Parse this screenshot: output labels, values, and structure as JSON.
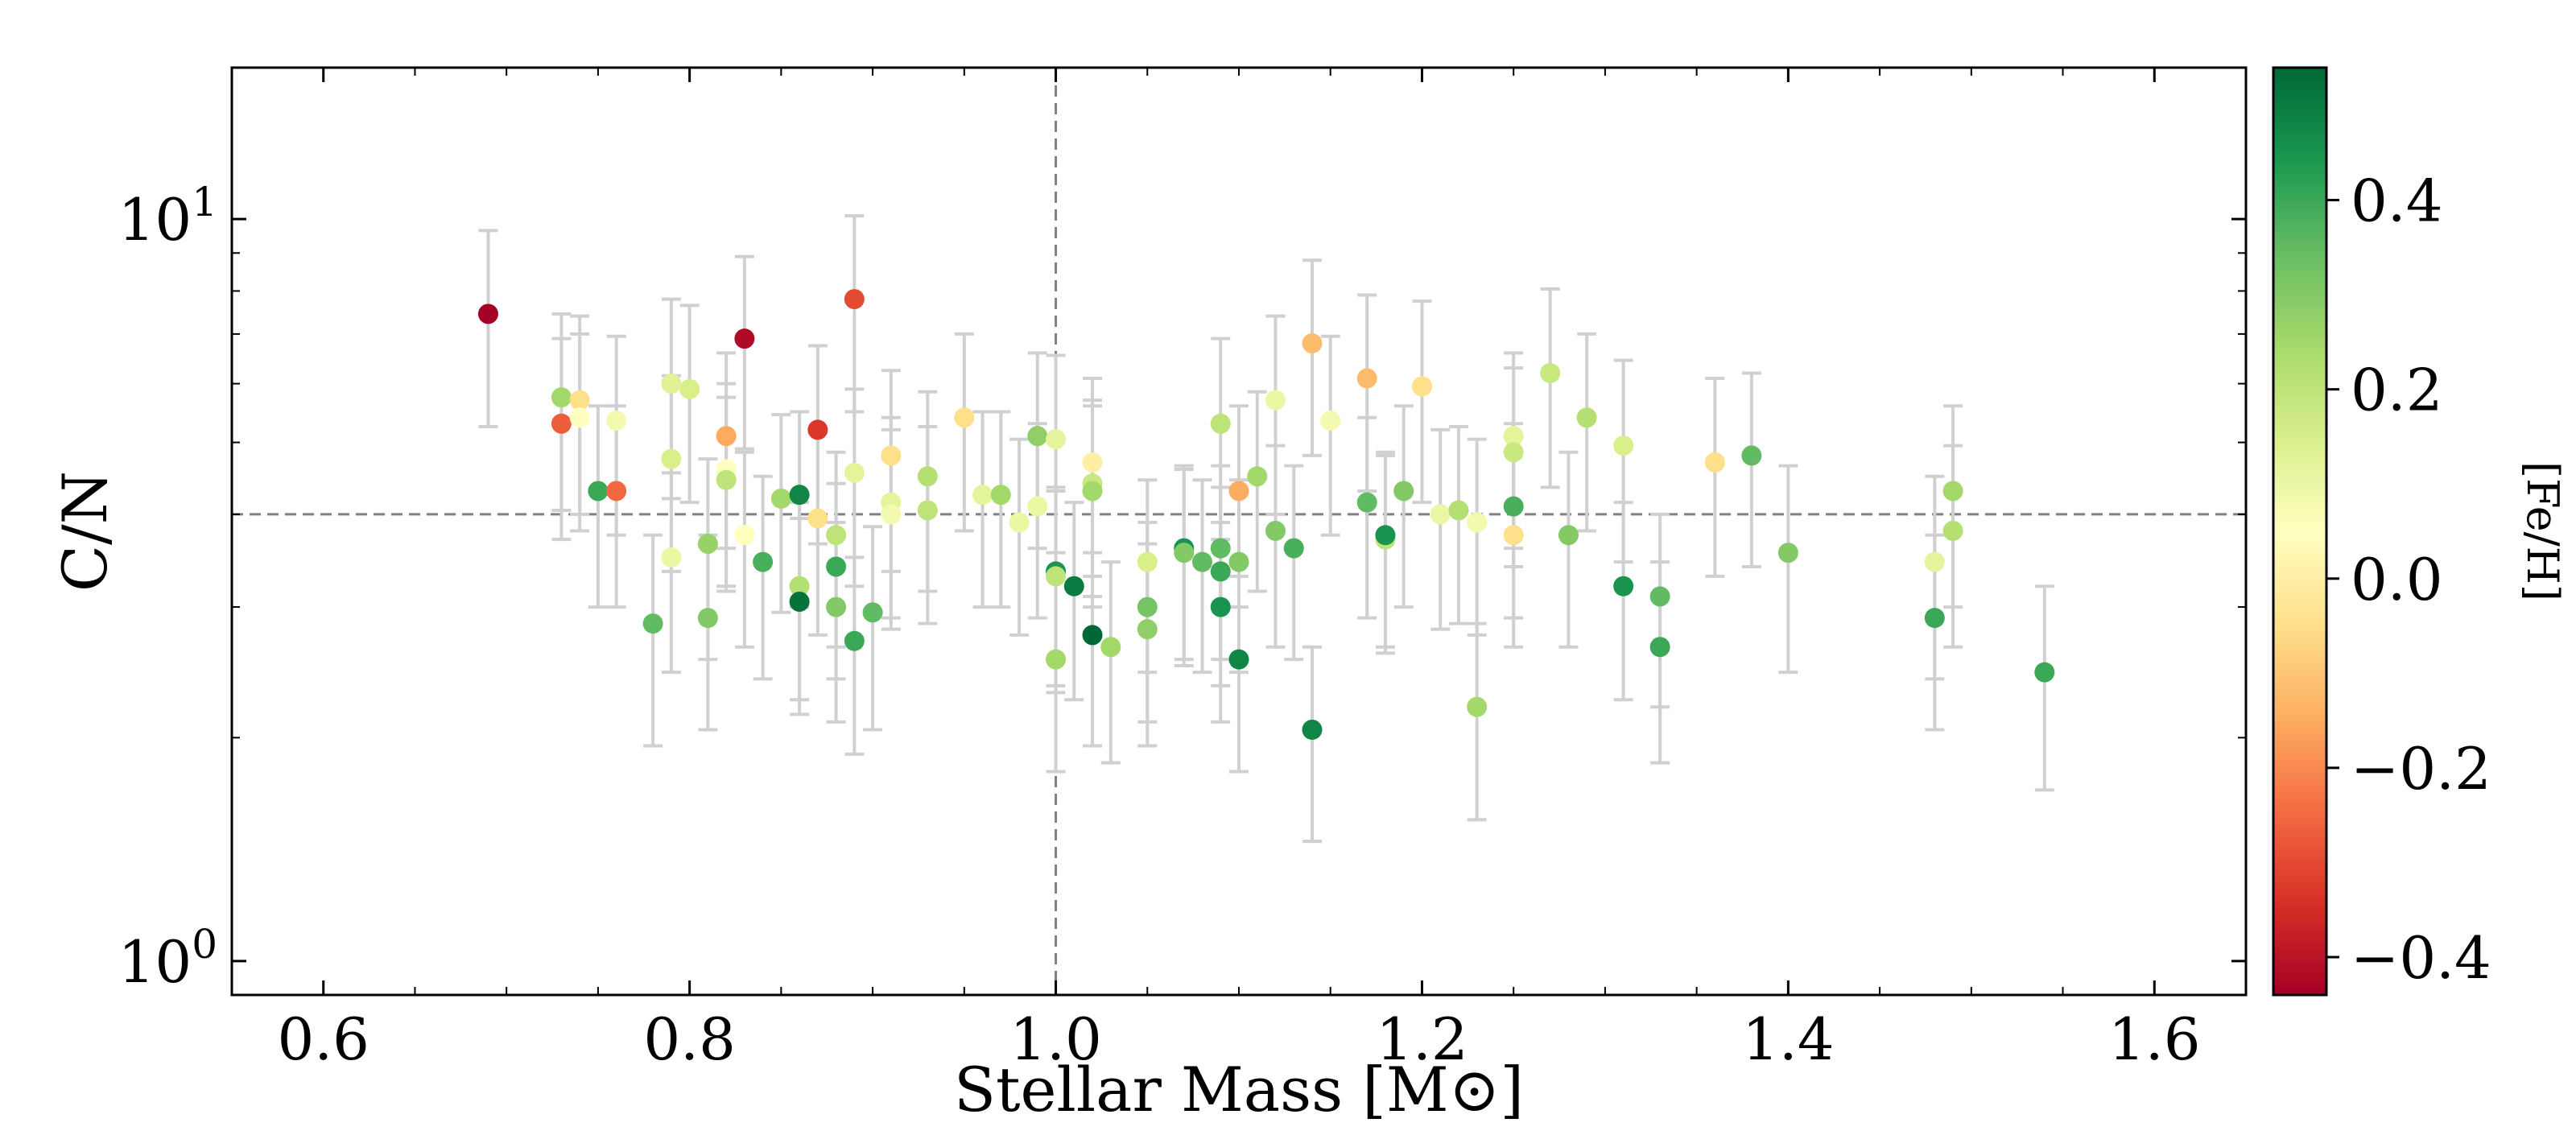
{
  "chart_data": {
    "type": "scatter",
    "title": "",
    "xlabel": "Stellar Mass [M⊙]",
    "ylabel": "C/N",
    "xlim": [
      0.55,
      1.65
    ],
    "ylim": [
      0.9,
      16.0
    ],
    "yscale": "log",
    "x_ticks": [
      0.6,
      0.8,
      1.0,
      1.2,
      1.4,
      1.6
    ],
    "x_tick_labels": [
      "0.6",
      "0.8",
      "1.0",
      "1.2",
      "1.4",
      "1.6"
    ],
    "y_ticks": [
      1,
      10
    ],
    "y_tick_labels": [
      {
        "base": "10",
        "exp": "0"
      },
      {
        "base": "10",
        "exp": "1"
      }
    ],
    "reference_lines": {
      "x": 1.0,
      "y": 4.0,
      "style": "dashed",
      "color": "#808080"
    },
    "colorbar": {
      "label": "[Fe/H]",
      "range": [
        -0.44,
        0.54
      ],
      "ticks": [
        -0.4,
        -0.2,
        0.0,
        0.2,
        0.4
      ],
      "tick_labels": [
        "−0.4",
        "−0.2",
        "0.0",
        "0.2",
        "0.4"
      ],
      "colormap": "RdYlGn",
      "stops": [
        "#a50026",
        "#d73027",
        "#f46d43",
        "#fdae61",
        "#fee08b",
        "#ffffbf",
        "#d9ef8b",
        "#a6d96a",
        "#66bd63",
        "#1a9850",
        "#006837"
      ]
    },
    "errorbar_color": "#d0d0d0",
    "points": [
      {
        "x": 0.69,
        "y": 7.45,
        "err": 2.2,
        "feh": -0.44
      },
      {
        "x": 0.73,
        "y": 5.75,
        "err": 1.7,
        "feh": 0.25
      },
      {
        "x": 0.73,
        "y": 5.3,
        "err": 1.6,
        "feh": -0.27
      },
      {
        "x": 0.74,
        "y": 5.7,
        "err": 1.7,
        "feh": -0.05
      },
      {
        "x": 0.74,
        "y": 5.4,
        "err": 1.6,
        "feh": 0.05
      },
      {
        "x": 0.75,
        "y": 4.3,
        "err": 1.3,
        "feh": 0.4
      },
      {
        "x": 0.76,
        "y": 5.35,
        "err": 1.6,
        "feh": 0.08
      },
      {
        "x": 0.76,
        "y": 4.3,
        "err": 1.3,
        "feh": -0.25
      },
      {
        "x": 0.78,
        "y": 2.85,
        "err": 0.9,
        "feh": 0.35
      },
      {
        "x": 0.79,
        "y": 6.0,
        "err": 1.8,
        "feh": 0.13
      },
      {
        "x": 0.79,
        "y": 4.75,
        "err": 1.4,
        "feh": 0.15
      },
      {
        "x": 0.79,
        "y": 3.5,
        "err": 1.05,
        "feh": 0.1
      },
      {
        "x": 0.8,
        "y": 5.9,
        "err": 1.75,
        "feh": 0.15
      },
      {
        "x": 0.81,
        "y": 3.65,
        "err": 1.1,
        "feh": 0.27
      },
      {
        "x": 0.81,
        "y": 2.9,
        "err": 0.85,
        "feh": 0.3
      },
      {
        "x": 0.82,
        "y": 5.1,
        "err": 1.5,
        "feh": -0.15
      },
      {
        "x": 0.82,
        "y": 4.6,
        "err": 1.4,
        "feh": 0.05
      },
      {
        "x": 0.82,
        "y": 4.45,
        "err": 1.3,
        "feh": 0.2
      },
      {
        "x": 0.83,
        "y": 6.9,
        "err": 2.0,
        "feh": -0.42
      },
      {
        "x": 0.83,
        "y": 3.75,
        "err": 1.1,
        "feh": 0.05
      },
      {
        "x": 0.84,
        "y": 3.45,
        "err": 1.05,
        "feh": 0.38
      },
      {
        "x": 0.85,
        "y": 4.2,
        "err": 1.25,
        "feh": 0.25
      },
      {
        "x": 0.86,
        "y": 4.25,
        "err": 1.25,
        "feh": 0.48
      },
      {
        "x": 0.86,
        "y": 3.2,
        "err": 0.95,
        "feh": 0.22
      },
      {
        "x": 0.86,
        "y": 3.05,
        "err": 0.9,
        "feh": 0.52
      },
      {
        "x": 0.87,
        "y": 5.2,
        "err": 1.55,
        "feh": -0.33
      },
      {
        "x": 0.87,
        "y": 3.95,
        "err": 1.2,
        "feh": -0.05
      },
      {
        "x": 0.88,
        "y": 3.75,
        "err": 1.1,
        "feh": 0.2
      },
      {
        "x": 0.88,
        "y": 3.4,
        "err": 1.0,
        "feh": 0.4
      },
      {
        "x": 0.88,
        "y": 3.0,
        "err": 0.9,
        "feh": 0.3
      },
      {
        "x": 0.89,
        "y": 7.8,
        "err": 2.3,
        "feh": -0.3
      },
      {
        "x": 0.89,
        "y": 4.55,
        "err": 1.35,
        "feh": 0.12
      },
      {
        "x": 0.89,
        "y": 2.7,
        "err": 0.8,
        "feh": 0.4
      },
      {
        "x": 0.9,
        "y": 2.95,
        "err": 0.9,
        "feh": 0.35
      },
      {
        "x": 0.91,
        "y": 4.8,
        "err": 1.45,
        "feh": -0.05
      },
      {
        "x": 0.91,
        "y": 4.15,
        "err": 1.25,
        "feh": 0.12
      },
      {
        "x": 0.91,
        "y": 4.0,
        "err": 1.2,
        "feh": 0.08
      },
      {
        "x": 0.93,
        "y": 4.5,
        "err": 1.35,
        "feh": 0.22
      },
      {
        "x": 0.93,
        "y": 4.05,
        "err": 1.2,
        "feh": 0.2
      },
      {
        "x": 0.95,
        "y": 5.4,
        "err": 1.6,
        "feh": -0.05
      },
      {
        "x": 0.96,
        "y": 4.25,
        "err": 1.25,
        "feh": 0.12
      },
      {
        "x": 0.97,
        "y": 4.25,
        "err": 1.25,
        "feh": 0.25
      },
      {
        "x": 0.98,
        "y": 3.9,
        "err": 1.15,
        "feh": 0.1
      },
      {
        "x": 0.99,
        "y": 5.1,
        "err": 1.5,
        "feh": 0.28
      },
      {
        "x": 0.99,
        "y": 4.1,
        "err": 1.2,
        "feh": 0.1
      },
      {
        "x": 1.0,
        "y": 5.05,
        "err": 1.5,
        "feh": 0.12
      },
      {
        "x": 1.0,
        "y": 3.35,
        "err": 1.0,
        "feh": 0.45
      },
      {
        "x": 1.0,
        "y": 3.3,
        "err": 1.0,
        "feh": 0.2
      },
      {
        "x": 1.0,
        "y": 2.55,
        "err": 0.75,
        "feh": 0.25
      },
      {
        "x": 1.01,
        "y": 3.2,
        "err": 0.95,
        "feh": 0.5
      },
      {
        "x": 1.02,
        "y": 4.7,
        "err": 1.4,
        "feh": 0.0
      },
      {
        "x": 1.02,
        "y": 4.4,
        "err": 1.3,
        "feh": 0.18
      },
      {
        "x": 1.02,
        "y": 4.3,
        "err": 1.3,
        "feh": 0.25
      },
      {
        "x": 1.02,
        "y": 2.75,
        "err": 0.8,
        "feh": 0.54
      },
      {
        "x": 1.03,
        "y": 2.65,
        "err": 0.8,
        "feh": 0.25
      },
      {
        "x": 1.05,
        "y": 3.45,
        "err": 1.0,
        "feh": 0.15
      },
      {
        "x": 1.05,
        "y": 3.0,
        "err": 0.9,
        "feh": 0.32
      },
      {
        "x": 1.05,
        "y": 2.8,
        "err": 0.85,
        "feh": 0.28
      },
      {
        "x": 1.07,
        "y": 3.6,
        "err": 1.05,
        "feh": 0.45
      },
      {
        "x": 1.07,
        "y": 3.55,
        "err": 1.05,
        "feh": 0.3
      },
      {
        "x": 1.08,
        "y": 3.45,
        "err": 1.0,
        "feh": 0.35
      },
      {
        "x": 1.09,
        "y": 5.3,
        "err": 1.6,
        "feh": 0.2
      },
      {
        "x": 1.09,
        "y": 3.6,
        "err": 1.05,
        "feh": 0.35
      },
      {
        "x": 1.09,
        "y": 3.35,
        "err": 1.0,
        "feh": 0.4
      },
      {
        "x": 1.09,
        "y": 3.0,
        "err": 0.9,
        "feh": 0.45
      },
      {
        "x": 1.1,
        "y": 4.3,
        "err": 1.3,
        "feh": -0.15
      },
      {
        "x": 1.1,
        "y": 3.45,
        "err": 1.0,
        "feh": 0.3
      },
      {
        "x": 1.1,
        "y": 2.55,
        "err": 0.75,
        "feh": 0.48
      },
      {
        "x": 1.11,
        "y": 4.5,
        "err": 1.35,
        "feh": 0.25
      },
      {
        "x": 1.12,
        "y": 5.7,
        "err": 1.7,
        "feh": 0.1
      },
      {
        "x": 1.12,
        "y": 3.8,
        "err": 1.15,
        "feh": 0.3
      },
      {
        "x": 1.13,
        "y": 3.6,
        "err": 1.05,
        "feh": 0.38
      },
      {
        "x": 1.14,
        "y": 6.8,
        "err": 2.0,
        "feh": -0.12
      },
      {
        "x": 1.14,
        "y": 2.05,
        "err": 0.6,
        "feh": 0.48
      },
      {
        "x": 1.15,
        "y": 5.35,
        "err": 1.6,
        "feh": 0.08
      },
      {
        "x": 1.17,
        "y": 6.1,
        "err": 1.8,
        "feh": -0.12
      },
      {
        "x": 1.17,
        "y": 4.15,
        "err": 1.25,
        "feh": 0.35
      },
      {
        "x": 1.18,
        "y": 3.7,
        "err": 1.1,
        "feh": 0.2
      },
      {
        "x": 1.18,
        "y": 3.75,
        "err": 1.1,
        "feh": 0.45
      },
      {
        "x": 1.19,
        "y": 4.3,
        "err": 1.3,
        "feh": 0.3
      },
      {
        "x": 1.2,
        "y": 5.95,
        "err": 1.8,
        "feh": -0.05
      },
      {
        "x": 1.21,
        "y": 4.0,
        "err": 1.2,
        "feh": 0.1
      },
      {
        "x": 1.22,
        "y": 4.05,
        "err": 1.2,
        "feh": 0.22
      },
      {
        "x": 1.23,
        "y": 3.9,
        "err": 1.15,
        "feh": 0.08
      },
      {
        "x": 1.23,
        "y": 2.2,
        "err": 0.65,
        "feh": 0.25
      },
      {
        "x": 1.25,
        "y": 5.1,
        "err": 1.5,
        "feh": 0.12
      },
      {
        "x": 1.25,
        "y": 4.85,
        "err": 1.45,
        "feh": 0.18
      },
      {
        "x": 1.25,
        "y": 4.1,
        "err": 1.2,
        "feh": 0.38
      },
      {
        "x": 1.25,
        "y": 3.75,
        "err": 1.1,
        "feh": -0.05
      },
      {
        "x": 1.27,
        "y": 6.2,
        "err": 1.85,
        "feh": 0.18
      },
      {
        "x": 1.28,
        "y": 3.75,
        "err": 1.1,
        "feh": 0.3
      },
      {
        "x": 1.29,
        "y": 5.4,
        "err": 1.6,
        "feh": 0.22
      },
      {
        "x": 1.31,
        "y": 4.95,
        "err": 1.5,
        "feh": 0.15
      },
      {
        "x": 1.31,
        "y": 3.2,
        "err": 0.95,
        "feh": 0.45
      },
      {
        "x": 1.33,
        "y": 3.1,
        "err": 0.9,
        "feh": 0.35
      },
      {
        "x": 1.33,
        "y": 2.65,
        "err": 0.8,
        "feh": 0.4
      },
      {
        "x": 1.36,
        "y": 4.7,
        "err": 1.4,
        "feh": -0.05
      },
      {
        "x": 1.38,
        "y": 4.8,
        "err": 1.4,
        "feh": 0.35
      },
      {
        "x": 1.4,
        "y": 3.55,
        "err": 1.1,
        "feh": 0.3
      },
      {
        "x": 1.48,
        "y": 3.45,
        "err": 1.05,
        "feh": 0.12
      },
      {
        "x": 1.48,
        "y": 2.9,
        "err": 0.85,
        "feh": 0.4
      },
      {
        "x": 1.49,
        "y": 4.3,
        "err": 1.3,
        "feh": 0.25
      },
      {
        "x": 1.49,
        "y": 3.8,
        "err": 1.15,
        "feh": 0.22
      },
      {
        "x": 1.54,
        "y": 2.45,
        "err": 0.75,
        "feh": 0.4
      }
    ]
  }
}
